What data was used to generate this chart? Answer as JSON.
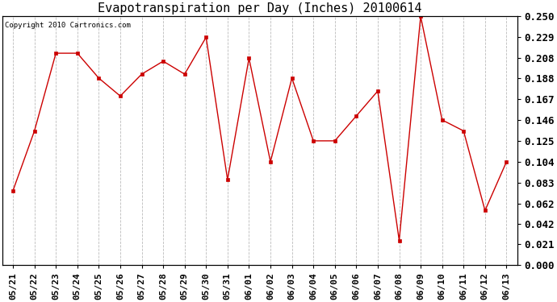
{
  "title": "Evapotranspiration per Day (Inches) 20100614",
  "copyright_text": "Copyright 2010 Cartronics.com",
  "x_labels": [
    "05/21",
    "05/22",
    "05/23",
    "05/24",
    "05/25",
    "05/26",
    "05/27",
    "05/28",
    "05/29",
    "05/30",
    "05/31",
    "06/01",
    "06/02",
    "06/03",
    "06/04",
    "06/05",
    "06/06",
    "06/07",
    "06/08",
    "06/09",
    "06/10",
    "06/11",
    "06/12",
    "06/13"
  ],
  "y_values": [
    0.075,
    0.135,
    0.213,
    0.213,
    0.188,
    0.17,
    0.192,
    0.205,
    0.192,
    0.229,
    0.086,
    0.208,
    0.104,
    0.188,
    0.125,
    0.125,
    0.15,
    0.175,
    0.025,
    0.25,
    0.146,
    0.135,
    0.055,
    0.104
  ],
  "y_ticks": [
    0.0,
    0.021,
    0.042,
    0.062,
    0.083,
    0.104,
    0.125,
    0.146,
    0.167,
    0.188,
    0.208,
    0.229,
    0.25
  ],
  "line_color": "#cc0000",
  "marker": "s",
  "marker_size": 3,
  "background_color": "#ffffff",
  "plot_bg_color": "#ffffff",
  "grid_color": "#aaaaaa",
  "title_fontsize": 11,
  "tick_fontsize": 8,
  "ytick_fontsize": 9,
  "copyright_fontsize": 6.5
}
